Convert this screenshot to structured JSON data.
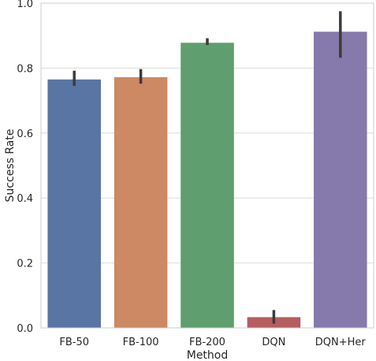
{
  "chart_data": {
    "type": "bar",
    "title": "",
    "xlabel": "Method",
    "ylabel": "Success Rate",
    "categories": [
      "FB-50",
      "FB-100",
      "FB-200",
      "DQN",
      "DQN+Her"
    ],
    "values": [
      0.765,
      0.772,
      0.878,
      0.033,
      0.912
    ],
    "error_low": [
      0.745,
      0.752,
      0.871,
      0.013,
      0.832
    ],
    "error_high": [
      0.792,
      0.797,
      0.892,
      0.055,
      0.975
    ],
    "colors": [
      "#5875a4",
      "#cc8963",
      "#5f9e6e",
      "#b55d60",
      "#857aab"
    ],
    "error_color": "#3b3b3b",
    "ylim": [
      0,
      1.0
    ],
    "yticks": [
      0.0,
      0.2,
      0.4,
      0.6,
      0.8,
      1.0
    ],
    "ytick_labels": [
      "0.0",
      "0.2",
      "0.4",
      "0.6",
      "0.8",
      "1.0"
    ],
    "grid": "horizontal",
    "legend": "none",
    "style": {
      "background": "#ffffff",
      "grid_color": "#dcdcdc",
      "spine_color": "#cccccc"
    }
  }
}
